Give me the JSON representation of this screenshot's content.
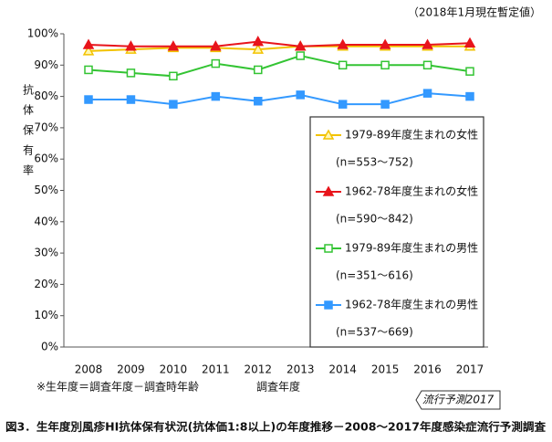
{
  "chart_data": {
    "type": "line",
    "title": "図3．生年度別風疹HI抗体保有状況(抗体価1:8以上)の年度推移－2008～2017年度感染症流行予測調査",
    "subtitle": "（2018年1月現在暫定値）",
    "y_label": "抗体保有率",
    "x_label": "調査年度",
    "note": "※生年度＝調査年度－調査時年齢",
    "badge": "流行予測2017",
    "categories": [
      "2008",
      "2009",
      "2010",
      "2011",
      "2012",
      "2013",
      "2014",
      "2015",
      "2016",
      "2017"
    ],
    "ylim": [
      0,
      100
    ],
    "yticks": [
      {
        "value": 0,
        "label": "0%"
      },
      {
        "value": 10,
        "label": "10%"
      },
      {
        "value": 20,
        "label": "20%"
      },
      {
        "value": 30,
        "label": "30%"
      },
      {
        "value": 40,
        "label": "40%"
      },
      {
        "value": 50,
        "label": "50%"
      },
      {
        "value": 60,
        "label": "60%"
      },
      {
        "value": 70,
        "label": "70%"
      },
      {
        "value": 80,
        "label": "80%"
      },
      {
        "value": 90,
        "label": "90%"
      },
      {
        "value": 100,
        "label": "100%"
      }
    ],
    "series": [
      {
        "name": "1979-89年度生まれの女性",
        "sublabel": "(n=553～752)",
        "color": "#f2c200",
        "marker": "triangle-open",
        "values": [
          94.5,
          95,
          95.5,
          95.5,
          95,
          96,
          96,
          96,
          96,
          96
        ]
      },
      {
        "name": "1962-78年度生まれの女性",
        "sublabel": "(n=590～842)",
        "color": "#e8141b",
        "marker": "triangle",
        "values": [
          96.5,
          96,
          96,
          96,
          97.5,
          96,
          96.5,
          96.5,
          96.5,
          97
        ]
      },
      {
        "name": "1979-89年度生まれの男性",
        "sublabel": "(n=351～616)",
        "color": "#33c433",
        "marker": "square-open",
        "values": [
          88.5,
          87.5,
          86.5,
          90.5,
          88.5,
          93,
          90,
          90,
          90,
          88
        ]
      },
      {
        "name": "1962-78年度生まれの男性",
        "sublabel": "(n=537～669)",
        "color": "#3399ff",
        "marker": "square",
        "values": [
          79,
          79,
          77.5,
          80,
          78.5,
          80.5,
          77.5,
          77.5,
          81,
          80
        ]
      }
    ]
  }
}
